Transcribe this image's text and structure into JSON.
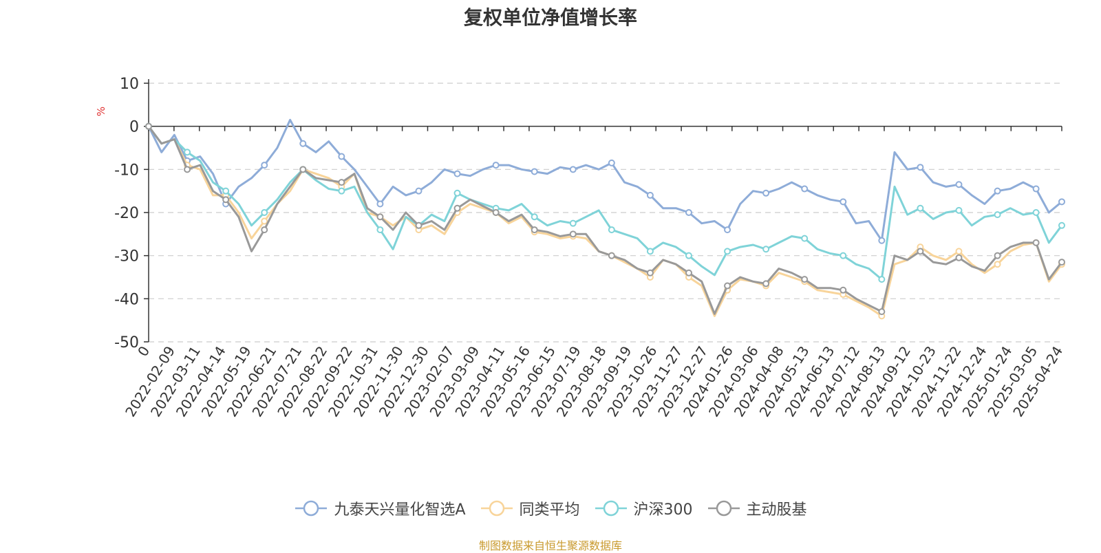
{
  "title": "复权单位净值增长率",
  "source": "制图数据来自恒生聚源数据库",
  "chart_data": {
    "type": "line",
    "title": "复权单位净值增长率",
    "ylabel": "%",
    "ylim": [
      -50,
      10
    ],
    "yticks": [
      10,
      0,
      -10,
      -20,
      -30,
      -40,
      -50
    ],
    "grid": true,
    "legend_position": "bottom",
    "x_tick_labels": [
      "0",
      "2022-02-09",
      "2022-03-11",
      "2022-04-14",
      "2022-05-19",
      "2022-06-21",
      "2022-07-21",
      "2022-08-22",
      "2022-09-22",
      "2022-10-31",
      "2022-11-30",
      "2022-12-30",
      "2023-02-07",
      "2023-03-09",
      "2023-04-11",
      "2023-05-16",
      "2023-06-15",
      "2023-07-19",
      "2023-08-18",
      "2023-09-19",
      "2023-10-26",
      "2023-11-27",
      "2023-12-27",
      "2024-01-26",
      "2024-03-06",
      "2024-04-08",
      "2024-05-13",
      "2024-06-13",
      "2024-07-12",
      "2024-08-13",
      "2024-09-12",
      "2024-10-23",
      "2024-11-22",
      "2024-12-24",
      "2025-01-24",
      "2025-03-05",
      "2025-04-24"
    ],
    "series": [
      {
        "name": "九泰天兴量化智选A",
        "color": "#8eacd8",
        "values": [
          0,
          -6,
          -2,
          -8,
          -7,
          -11,
          -18,
          -14,
          -12,
          -9,
          -5,
          1.5,
          -4,
          -6,
          -3.5,
          -7,
          -10,
          -14,
          -18,
          -14,
          -16,
          -15,
          -13,
          -10,
          -11,
          -11.5,
          -10,
          -9,
          -9,
          -10,
          -10.5,
          -11,
          -9.5,
          -10,
          -9,
          -10,
          -8.5,
          -13,
          -14,
          -16,
          -19,
          -19,
          -20,
          -22.5,
          -22,
          -24,
          -18,
          -15,
          -15.5,
          -14.5,
          -13,
          -14.5,
          -16,
          -17,
          -17.5,
          -22.5,
          -22,
          -26.5,
          -6,
          -10,
          -9.5,
          -13,
          -14,
          -13.5,
          -16,
          -18,
          -15,
          -14.5,
          -13,
          -14.5,
          -20,
          -17.5
        ]
      },
      {
        "name": "同类平均",
        "color": "#f8d49a",
        "values": [
          0,
          -4,
          -3,
          -9,
          -10,
          -16,
          -16,
          -20,
          -26,
          -22,
          -18,
          -15,
          -10,
          -11,
          -12,
          -14,
          -11,
          -20,
          -21,
          -23,
          -21,
          -24,
          -23,
          -25,
          -20,
          -18,
          -19,
          -20,
          -22.5,
          -21,
          -24.5,
          -25,
          -26,
          -25.5,
          -26,
          -29,
          -30,
          -31.5,
          -33,
          -35,
          -31,
          -32,
          -35,
          -37,
          -44,
          -38,
          -35.5,
          -36,
          -37,
          -34,
          -35,
          -36,
          -38,
          -38.5,
          -39,
          -40.5,
          -42,
          -44,
          -32,
          -31,
          -28,
          -30,
          -31,
          -29,
          -32,
          -34,
          -32,
          -29,
          -27.5,
          -27,
          -36,
          -32
        ]
      },
      {
        "name": "沪深300",
        "color": "#7fd3d8",
        "values": [
          0,
          -4,
          -3,
          -6,
          -8,
          -13,
          -15,
          -18,
          -23,
          -20,
          -17,
          -13,
          -10,
          -12.5,
          -14.5,
          -15,
          -14,
          -20,
          -24,
          -28.5,
          -21,
          -23,
          -20.5,
          -22,
          -15.5,
          -17,
          -18,
          -19,
          -19.5,
          -18,
          -21,
          -23,
          -22,
          -22.5,
          -21,
          -19.5,
          -24,
          -25,
          -26,
          -29,
          -27,
          -28,
          -30,
          -32.5,
          -34.5,
          -29,
          -28,
          -27.5,
          -28.5,
          -27,
          -25.5,
          -26,
          -28.5,
          -29.5,
          -30,
          -32,
          -33,
          -35.5,
          -14,
          -20.5,
          -19,
          -21.5,
          -20,
          -19.5,
          -23,
          -21,
          -20.5,
          -19,
          -20.5,
          -20,
          -27,
          -23
        ]
      },
      {
        "name": "主动股基",
        "color": "#999999",
        "values": [
          0,
          -4,
          -3,
          -10,
          -9,
          -15,
          -17,
          -21,
          -29,
          -24,
          -18,
          -14,
          -10,
          -12,
          -12.5,
          -13,
          -11,
          -19,
          -21,
          -24,
          -20,
          -23,
          -22,
          -24,
          -19,
          -17,
          -18.5,
          -20,
          -22,
          -20.5,
          -24,
          -24.5,
          -25.5,
          -25,
          -25,
          -29,
          -30,
          -31,
          -33,
          -34,
          -31,
          -32,
          -34,
          -36,
          -43.5,
          -37,
          -35,
          -36,
          -36.5,
          -33,
          -34,
          -35.5,
          -37.5,
          -37.5,
          -38,
          -40,
          -41.5,
          -43,
          -30,
          -31,
          -29,
          -31.5,
          -32,
          -30.5,
          -32.5,
          -33.5,
          -30,
          -28,
          -27,
          -27,
          -35.5,
          -31.5
        ]
      }
    ]
  }
}
